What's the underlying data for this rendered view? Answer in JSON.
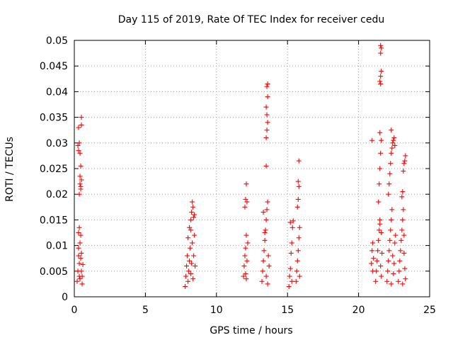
{
  "chart_data": {
    "type": "scatter",
    "title": "Day 115 of 2019, Rate Of TEC Index for receiver cedu",
    "xlabel": "GPS time / hours",
    "ylabel": "ROTI / TECUs",
    "xlim": [
      0,
      25
    ],
    "ylim": [
      0,
      0.05
    ],
    "xticks": [
      0,
      5,
      10,
      15,
      20,
      25
    ],
    "xtick_labels": [
      "0",
      "5",
      "10",
      "15",
      "20",
      "25"
    ],
    "yticks": [
      0,
      0.005,
      0.01,
      0.015,
      0.02,
      0.025,
      0.03,
      0.035,
      0.04,
      0.045,
      0.05
    ],
    "ytick_labels": [
      "0",
      "0.005",
      "0.01",
      "0.015",
      "0.02",
      "0.025",
      "0.03",
      "0.035",
      "0.04",
      "0.045",
      "0.05"
    ],
    "grid": true,
    "marker": "+",
    "color": "#ff0000",
    "series": [
      {
        "name": "ROTI",
        "points": [
          [
            0.2,
            0.003
          ],
          [
            0.25,
            0.005
          ],
          [
            0.3,
            0.008
          ],
          [
            0.3,
            0.0095
          ],
          [
            0.35,
            0.004
          ],
          [
            0.35,
            0.0065
          ],
          [
            0.4,
            0.0105
          ],
          [
            0.4,
            0.0035
          ],
          [
            0.45,
            0.0075
          ],
          [
            0.45,
            0.012
          ],
          [
            0.5,
            0.005
          ],
          [
            0.5,
            0.0085
          ],
          [
            0.55,
            0.004
          ],
          [
            0.55,
            0.0025
          ],
          [
            0.6,
            0.0063
          ],
          [
            0.35,
            0.0135
          ],
          [
            0.3,
            0.0125
          ],
          [
            0.25,
            0.0295
          ],
          [
            0.3,
            0.0285
          ],
          [
            0.3,
            0.033
          ],
          [
            0.35,
            0.02
          ],
          [
            0.4,
            0.022
          ],
          [
            0.4,
            0.0235
          ],
          [
            0.45,
            0.021
          ],
          [
            0.45,
            0.0215
          ],
          [
            0.5,
            0.0335
          ],
          [
            0.5,
            0.0228
          ],
          [
            0.5,
            0.035
          ],
          [
            0.45,
            0.0255
          ],
          [
            0.4,
            0.028
          ],
          [
            0.35,
            0.03
          ],
          [
            7.8,
            0.002
          ],
          [
            7.85,
            0.004
          ],
          [
            7.9,
            0.006
          ],
          [
            7.95,
            0.008
          ],
          [
            8.0,
            0.003
          ],
          [
            8.05,
            0.005
          ],
          [
            8.1,
            0.007
          ],
          [
            8.15,
            0.0095
          ],
          [
            8.2,
            0.0045
          ],
          [
            8.25,
            0.0065
          ],
          [
            8.3,
            0.0105
          ],
          [
            8.35,
            0.0035
          ],
          [
            8.4,
            0.008
          ],
          [
            8.45,
            0.012
          ],
          [
            8.5,
            0.006
          ],
          [
            8.0,
            0.0115
          ],
          [
            8.1,
            0.0135
          ],
          [
            8.2,
            0.015
          ],
          [
            8.25,
            0.0165
          ],
          [
            8.3,
            0.0185
          ],
          [
            8.35,
            0.0175
          ],
          [
            8.4,
            0.0155
          ],
          [
            8.2,
            0.013
          ],
          [
            8.45,
            0.016
          ],
          [
            11.9,
            0.004
          ],
          [
            11.95,
            0.006
          ],
          [
            12.0,
            0.008
          ],
          [
            12.05,
            0.0095
          ],
          [
            12.1,
            0.0035
          ],
          [
            12.15,
            0.007
          ],
          [
            12.2,
            0.0105
          ],
          [
            12.1,
            0.012
          ],
          [
            12.0,
            0.0175
          ],
          [
            12.05,
            0.019
          ],
          [
            12.1,
            0.022
          ],
          [
            12.15,
            0.0185
          ],
          [
            12.05,
            0.0045
          ],
          [
            13.2,
            0.003
          ],
          [
            13.25,
            0.005
          ],
          [
            13.3,
            0.007
          ],
          [
            13.35,
            0.009
          ],
          [
            13.4,
            0.011
          ],
          [
            13.45,
            0.013
          ],
          [
            13.5,
            0.015
          ],
          [
            13.55,
            0.017
          ],
          [
            13.6,
            0.0185
          ],
          [
            13.65,
            0.008
          ],
          [
            13.7,
            0.006
          ],
          [
            13.4,
            0.0125
          ],
          [
            13.5,
            0.004
          ],
          [
            13.6,
            0.0025
          ],
          [
            13.3,
            0.0165
          ],
          [
            13.5,
            0.0255
          ],
          [
            13.5,
            0.031
          ],
          [
            13.55,
            0.0325
          ],
          [
            13.6,
            0.034
          ],
          [
            13.55,
            0.0355
          ],
          [
            13.5,
            0.037
          ],
          [
            13.6,
            0.039
          ],
          [
            13.55,
            0.041
          ],
          [
            13.6,
            0.0415
          ],
          [
            15.1,
            0.002
          ],
          [
            15.15,
            0.004
          ],
          [
            15.2,
            0.0055
          ],
          [
            15.25,
            0.0085
          ],
          [
            15.3,
            0.0105
          ],
          [
            15.35,
            0.0135
          ],
          [
            15.4,
            0.0148
          ],
          [
            15.2,
            0.0145
          ],
          [
            15.3,
            0.003
          ],
          [
            15.6,
            0.003
          ],
          [
            15.65,
            0.005
          ],
          [
            15.7,
            0.007
          ],
          [
            15.75,
            0.009
          ],
          [
            15.8,
            0.0115
          ],
          [
            15.85,
            0.0135
          ],
          [
            15.7,
            0.0175
          ],
          [
            15.75,
            0.019
          ],
          [
            15.8,
            0.0215
          ],
          [
            15.75,
            0.0225
          ],
          [
            15.8,
            0.0265
          ],
          [
            15.85,
            0.004
          ],
          [
            20.9,
            0.0065
          ],
          [
            20.95,
            0.009
          ],
          [
            21.0,
            0.0105
          ],
          [
            21.05,
            0.0075
          ],
          [
            21.0,
            0.005
          ],
          [
            20.95,
            0.0305
          ],
          [
            21.2,
            0.003
          ],
          [
            21.25,
            0.005
          ],
          [
            21.3,
            0.007
          ],
          [
            21.35,
            0.009
          ],
          [
            21.4,
            0.011
          ],
          [
            21.45,
            0.013
          ],
          [
            21.5,
            0.015
          ],
          [
            21.55,
            0.006
          ],
          [
            21.6,
            0.004
          ],
          [
            21.65,
            0.0085
          ],
          [
            21.5,
            0.0142
          ],
          [
            21.6,
            0.0125
          ],
          [
            21.4,
            0.0185
          ],
          [
            21.45,
            0.022
          ],
          [
            21.5,
            0.025
          ],
          [
            21.55,
            0.028
          ],
          [
            21.6,
            0.0305
          ],
          [
            21.5,
            0.032
          ],
          [
            21.55,
            0.0415
          ],
          [
            21.5,
            0.042
          ],
          [
            21.55,
            0.043
          ],
          [
            21.6,
            0.044
          ],
          [
            21.55,
            0.0475
          ],
          [
            21.6,
            0.0485
          ],
          [
            21.55,
            0.049
          ],
          [
            22.0,
            0.003
          ],
          [
            22.05,
            0.005
          ],
          [
            22.1,
            0.007
          ],
          [
            22.15,
            0.009
          ],
          [
            22.2,
            0.011
          ],
          [
            22.25,
            0.013
          ],
          [
            22.3,
            0.015
          ],
          [
            22.35,
            0.017
          ],
          [
            22.4,
            0.008
          ],
          [
            22.45,
            0.0045
          ],
          [
            22.5,
            0.0065
          ],
          [
            22.55,
            0.0105
          ],
          [
            22.6,
            0.012
          ],
          [
            22.3,
            0.0025
          ],
          [
            22.1,
            0.02
          ],
          [
            22.15,
            0.022
          ],
          [
            22.2,
            0.024
          ],
          [
            22.25,
            0.026
          ],
          [
            22.3,
            0.028
          ],
          [
            22.35,
            0.029
          ],
          [
            22.4,
            0.03
          ],
          [
            22.45,
            0.0305
          ],
          [
            22.5,
            0.031
          ],
          [
            22.55,
            0.0295
          ],
          [
            22.3,
            0.0325
          ],
          [
            22.8,
            0.003
          ],
          [
            22.85,
            0.005
          ],
          [
            22.9,
            0.007
          ],
          [
            22.95,
            0.009
          ],
          [
            23.0,
            0.011
          ],
          [
            23.05,
            0.013
          ],
          [
            23.1,
            0.015
          ],
          [
            23.15,
            0.017
          ],
          [
            23.2,
            0.0085
          ],
          [
            23.25,
            0.0055
          ],
          [
            23.3,
            0.0035
          ],
          [
            23.1,
            0.0025
          ],
          [
            23.2,
            0.012
          ],
          [
            23.05,
            0.0195
          ],
          [
            23.1,
            0.0205
          ],
          [
            23.15,
            0.0245
          ],
          [
            23.2,
            0.026
          ],
          [
            23.25,
            0.0265
          ],
          [
            23.3,
            0.0275
          ]
        ]
      }
    ]
  }
}
